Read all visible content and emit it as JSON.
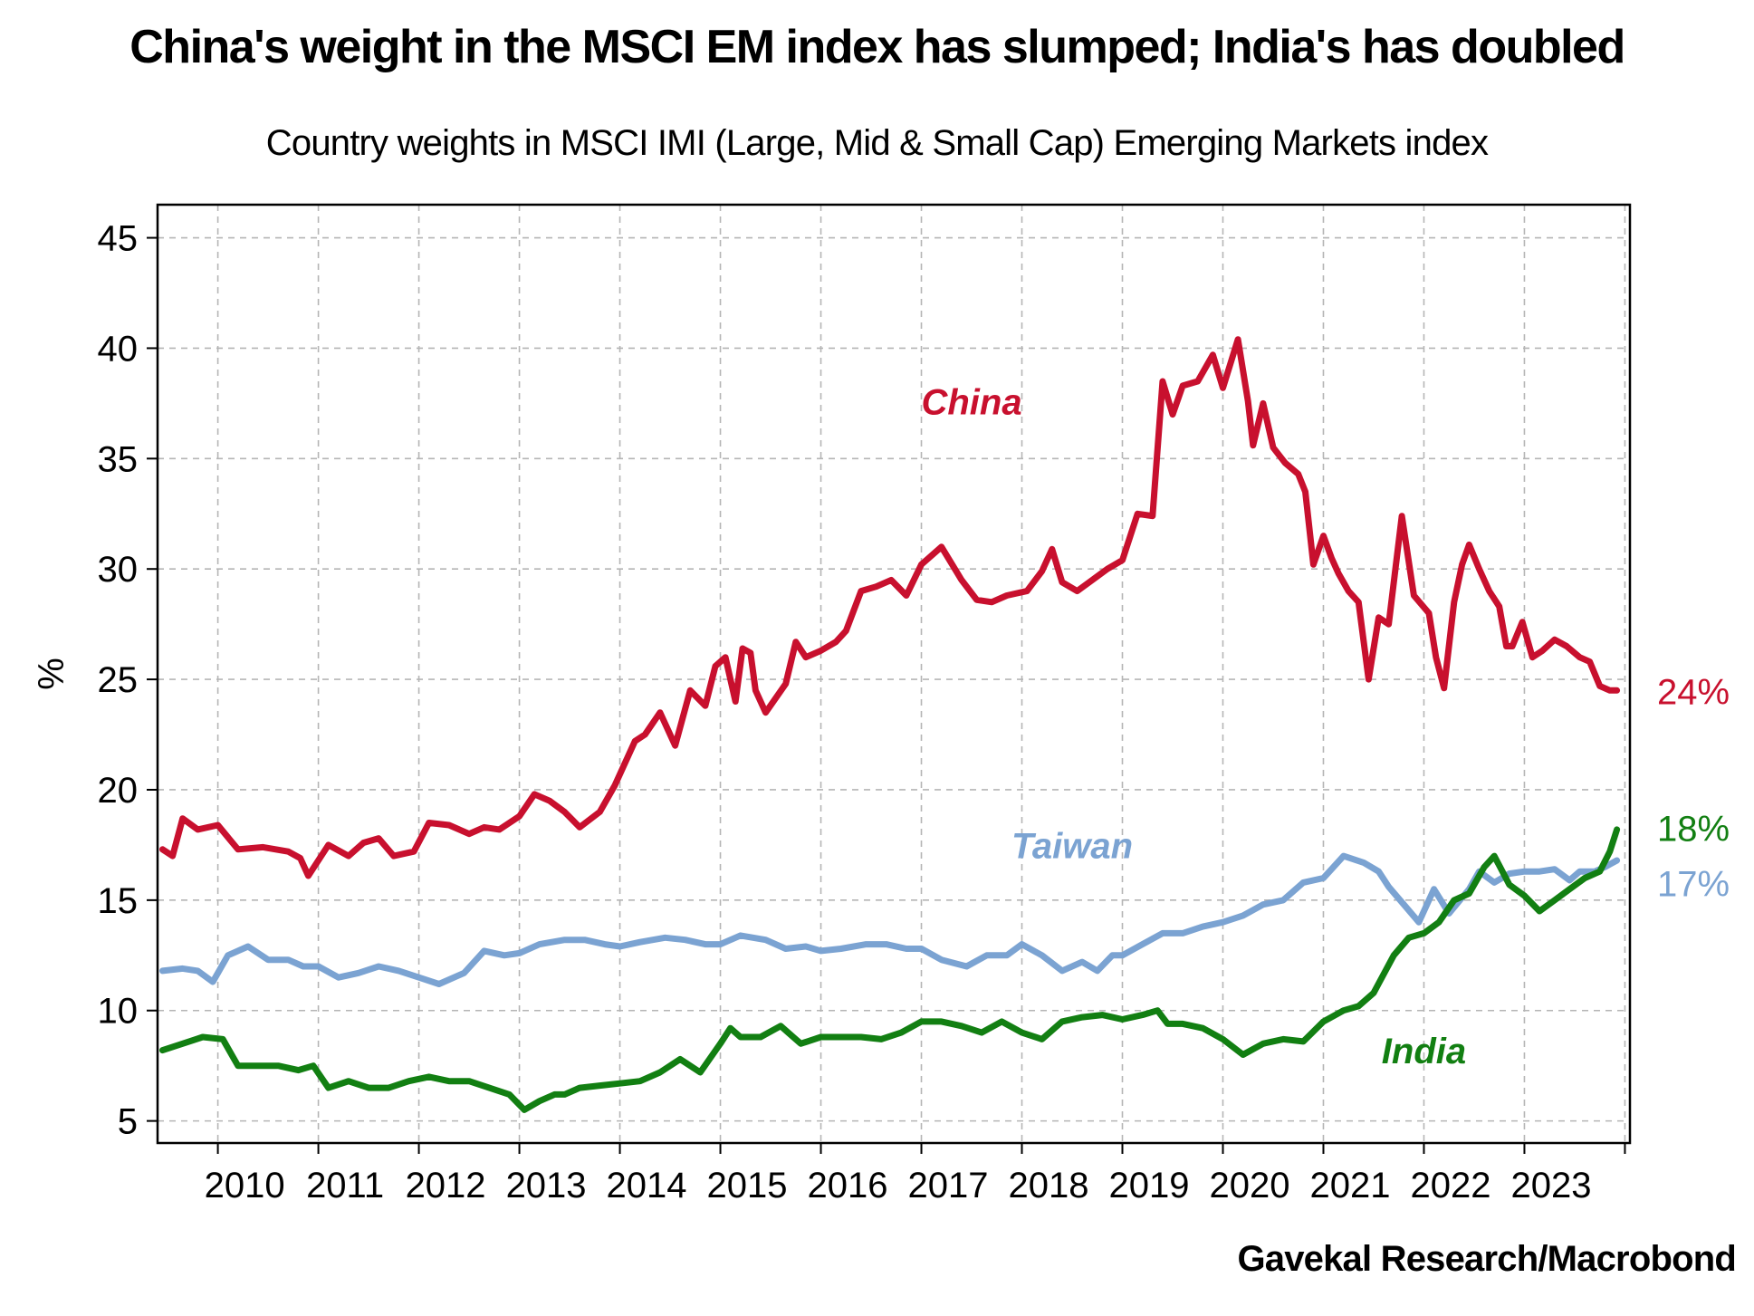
{
  "chart_data": {
    "type": "line",
    "title": "China's weight in the MSCI EM index has slumped; India's has doubled",
    "subtitle": "Country weights in MSCI IMI (Large, Mid & Small Cap) Emerging Markets index",
    "source": "Gavekal Research/Macrobond",
    "ylabel": "%",
    "xlabel": "",
    "ylim": [
      4,
      46.5
    ],
    "xlim": [
      2009.4,
      2024.05
    ],
    "yticks": [
      5,
      10,
      15,
      20,
      25,
      30,
      35,
      40,
      45
    ],
    "ytick_labels": [
      "5",
      "10",
      "15",
      "20",
      "25",
      "30",
      "35",
      "40",
      "45"
    ],
    "xtick_labels": [
      "2010",
      "2011",
      "2012",
      "2013",
      "2014",
      "2015",
      "2016",
      "2017",
      "2018",
      "2019",
      "2020",
      "2021",
      "2022",
      "2023"
    ],
    "grid": true,
    "series": [
      {
        "name": "China",
        "color": "#c8102e",
        "end_label": "24%",
        "x": [
          2009.45,
          2009.55,
          2009.65,
          2009.8,
          2010.0,
          2010.2,
          2010.45,
          2010.7,
          2010.82,
          2010.9,
          2011.1,
          2011.3,
          2011.45,
          2011.6,
          2011.75,
          2011.95,
          2012.1,
          2012.3,
          2012.5,
          2012.65,
          2012.8,
          2013.0,
          2013.15,
          2013.3,
          2013.45,
          2013.6,
          2013.8,
          2013.95,
          2014.15,
          2014.25,
          2014.4,
          2014.55,
          2014.7,
          2014.85,
          2014.95,
          2015.05,
          2015.15,
          2015.22,
          2015.3,
          2015.35,
          2015.45,
          2015.65,
          2015.75,
          2015.85,
          2016.0,
          2016.15,
          2016.25,
          2016.4,
          2016.55,
          2016.7,
          2016.85,
          2017.0,
          2017.2,
          2017.4,
          2017.55,
          2017.7,
          2017.85,
          2018.05,
          2018.2,
          2018.3,
          2018.4,
          2018.55,
          2018.7,
          2018.85,
          2019.0,
          2019.15,
          2019.3,
          2019.4,
          2019.5,
          2019.6,
          2019.75,
          2019.9,
          2020.0,
          2020.15,
          2020.25,
          2020.3,
          2020.4,
          2020.5,
          2020.62,
          2020.75,
          2020.82,
          2020.9,
          2021.0,
          2021.08,
          2021.15,
          2021.25,
          2021.35,
          2021.45,
          2021.55,
          2021.65,
          2021.78,
          2021.9,
          2022.05,
          2022.12,
          2022.2,
          2022.3,
          2022.38,
          2022.45,
          2022.55,
          2022.65,
          2022.75,
          2022.82,
          2022.88,
          2022.98,
          2023.08,
          2023.18,
          2023.3,
          2023.42,
          2023.55,
          2023.65,
          2023.75,
          2023.85,
          2023.92
        ],
        "y": [
          17.3,
          17.0,
          18.7,
          18.2,
          18.4,
          17.3,
          17.4,
          17.2,
          16.9,
          16.1,
          17.5,
          17.0,
          17.6,
          17.8,
          17.0,
          17.2,
          18.5,
          18.4,
          18.0,
          18.3,
          18.2,
          18.8,
          19.8,
          19.5,
          19.0,
          18.3,
          19.0,
          20.2,
          22.2,
          22.5,
          23.5,
          22.0,
          24.5,
          23.8,
          25.6,
          26.0,
          24.0,
          26.4,
          26.2,
          24.5,
          23.5,
          24.8,
          26.7,
          26.0,
          26.3,
          26.7,
          27.2,
          29.0,
          29.2,
          29.5,
          28.8,
          30.2,
          31.0,
          29.5,
          28.6,
          28.5,
          28.8,
          29.0,
          29.9,
          30.9,
          29.4,
          29.0,
          29.5,
          30.0,
          30.4,
          32.5,
          32.4,
          38.5,
          37.0,
          38.3,
          38.5,
          39.7,
          38.2,
          40.4,
          37.6,
          35.6,
          37.5,
          35.5,
          34.8,
          34.3,
          33.5,
          30.2,
          31.5,
          30.5,
          29.8,
          29.0,
          28.5,
          25.0,
          27.8,
          27.5,
          32.4,
          28.8,
          28.0,
          26.0,
          24.6,
          28.5,
          30.2,
          31.1,
          30.0,
          29.0,
          28.3,
          26.5,
          26.5,
          27.6,
          26.0,
          26.3,
          26.8,
          26.5,
          26.0,
          25.8,
          24.7,
          24.5,
          24.5
        ],
        "label": "China"
      },
      {
        "name": "Taiwan",
        "color": "#7ba3d2",
        "end_label": "17%",
        "x": [
          2009.45,
          2009.65,
          2009.8,
          2009.95,
          2010.1,
          2010.3,
          2010.5,
          2010.7,
          2010.85,
          2011.0,
          2011.2,
          2011.4,
          2011.6,
          2011.8,
          2012.0,
          2012.2,
          2012.45,
          2012.65,
          2012.85,
          2013.0,
          2013.2,
          2013.45,
          2013.65,
          2013.85,
          2014.0,
          2014.2,
          2014.45,
          2014.65,
          2014.85,
          2015.0,
          2015.2,
          2015.45,
          2015.65,
          2015.85,
          2016.0,
          2016.2,
          2016.45,
          2016.65,
          2016.85,
          2017.0,
          2017.2,
          2017.45,
          2017.65,
          2017.85,
          2018.0,
          2018.2,
          2018.4,
          2018.6,
          2018.75,
          2018.9,
          2019.0,
          2019.2,
          2019.4,
          2019.6,
          2019.8,
          2020.0,
          2020.2,
          2020.4,
          2020.6,
          2020.8,
          2021.0,
          2021.2,
          2021.4,
          2021.55,
          2021.65,
          2021.8,
          2021.95,
          2022.1,
          2022.25,
          2022.45,
          2022.55,
          2022.7,
          2022.85,
          2023.0,
          2023.15,
          2023.3,
          2023.45,
          2023.55,
          2023.7,
          2023.8,
          2023.92
        ],
        "y": [
          11.8,
          11.9,
          11.8,
          11.3,
          12.5,
          12.9,
          12.3,
          12.3,
          12.0,
          12.0,
          11.5,
          11.7,
          12.0,
          11.8,
          11.5,
          11.2,
          11.7,
          12.7,
          12.5,
          12.6,
          13.0,
          13.2,
          13.2,
          13.0,
          12.9,
          13.1,
          13.3,
          13.2,
          13.0,
          13.0,
          13.4,
          13.2,
          12.8,
          12.9,
          12.7,
          12.8,
          13.0,
          13.0,
          12.8,
          12.8,
          12.3,
          12.0,
          12.5,
          12.5,
          13.0,
          12.5,
          11.8,
          12.2,
          11.8,
          12.5,
          12.5,
          13.0,
          13.5,
          13.5,
          13.8,
          14.0,
          14.3,
          14.8,
          15.0,
          15.8,
          16.0,
          17.0,
          16.7,
          16.3,
          15.6,
          14.8,
          14.0,
          15.5,
          14.4,
          15.5,
          16.3,
          15.8,
          16.2,
          16.3,
          16.3,
          16.4,
          15.9,
          16.3,
          16.3,
          16.5,
          16.8
        ],
        "label": "Taiwan"
      },
      {
        "name": "India",
        "color": "#127f12",
        "end_label": "18%",
        "x": [
          2009.45,
          2009.65,
          2009.85,
          2010.05,
          2010.2,
          2010.4,
          2010.6,
          2010.8,
          2010.95,
          2011.1,
          2011.3,
          2011.5,
          2011.7,
          2011.9,
          2012.1,
          2012.3,
          2012.5,
          2012.7,
          2012.9,
          2013.05,
          2013.2,
          2013.35,
          2013.45,
          2013.6,
          2013.8,
          2014.0,
          2014.2,
          2014.4,
          2014.6,
          2014.8,
          2015.0,
          2015.1,
          2015.2,
          2015.4,
          2015.6,
          2015.8,
          2016.0,
          2016.2,
          2016.4,
          2016.6,
          2016.8,
          2017.0,
          2017.2,
          2017.4,
          2017.6,
          2017.8,
          2018.0,
          2018.2,
          2018.4,
          2018.6,
          2018.8,
          2019.0,
          2019.2,
          2019.35,
          2019.45,
          2019.6,
          2019.8,
          2020.0,
          2020.2,
          2020.4,
          2020.6,
          2020.8,
          2021.0,
          2021.2,
          2021.35,
          2021.5,
          2021.7,
          2021.85,
          2022.0,
          2022.15,
          2022.3,
          2022.45,
          2022.6,
          2022.7,
          2022.85,
          2023.0,
          2023.15,
          2023.3,
          2023.45,
          2023.6,
          2023.75,
          2023.85,
          2023.92
        ],
        "y": [
          8.2,
          8.5,
          8.8,
          8.7,
          7.5,
          7.5,
          7.5,
          7.3,
          7.5,
          6.5,
          6.8,
          6.5,
          6.5,
          6.8,
          7.0,
          6.8,
          6.8,
          6.5,
          6.2,
          5.5,
          5.9,
          6.2,
          6.2,
          6.5,
          6.6,
          6.7,
          6.8,
          7.2,
          7.8,
          7.2,
          8.5,
          9.2,
          8.8,
          8.8,
          9.3,
          8.5,
          8.8,
          8.8,
          8.8,
          8.7,
          9.0,
          9.5,
          9.5,
          9.3,
          9.0,
          9.5,
          9.0,
          8.7,
          9.5,
          9.7,
          9.8,
          9.6,
          9.8,
          10.0,
          9.4,
          9.4,
          9.2,
          8.7,
          8.0,
          8.5,
          8.7,
          8.6,
          9.5,
          10.0,
          10.2,
          10.8,
          12.5,
          13.3,
          13.5,
          14.0,
          15.0,
          15.3,
          16.5,
          17.0,
          15.7,
          15.2,
          14.5,
          15.0,
          15.5,
          16.0,
          16.3,
          17.2,
          18.2
        ],
        "label": "India"
      }
    ]
  }
}
